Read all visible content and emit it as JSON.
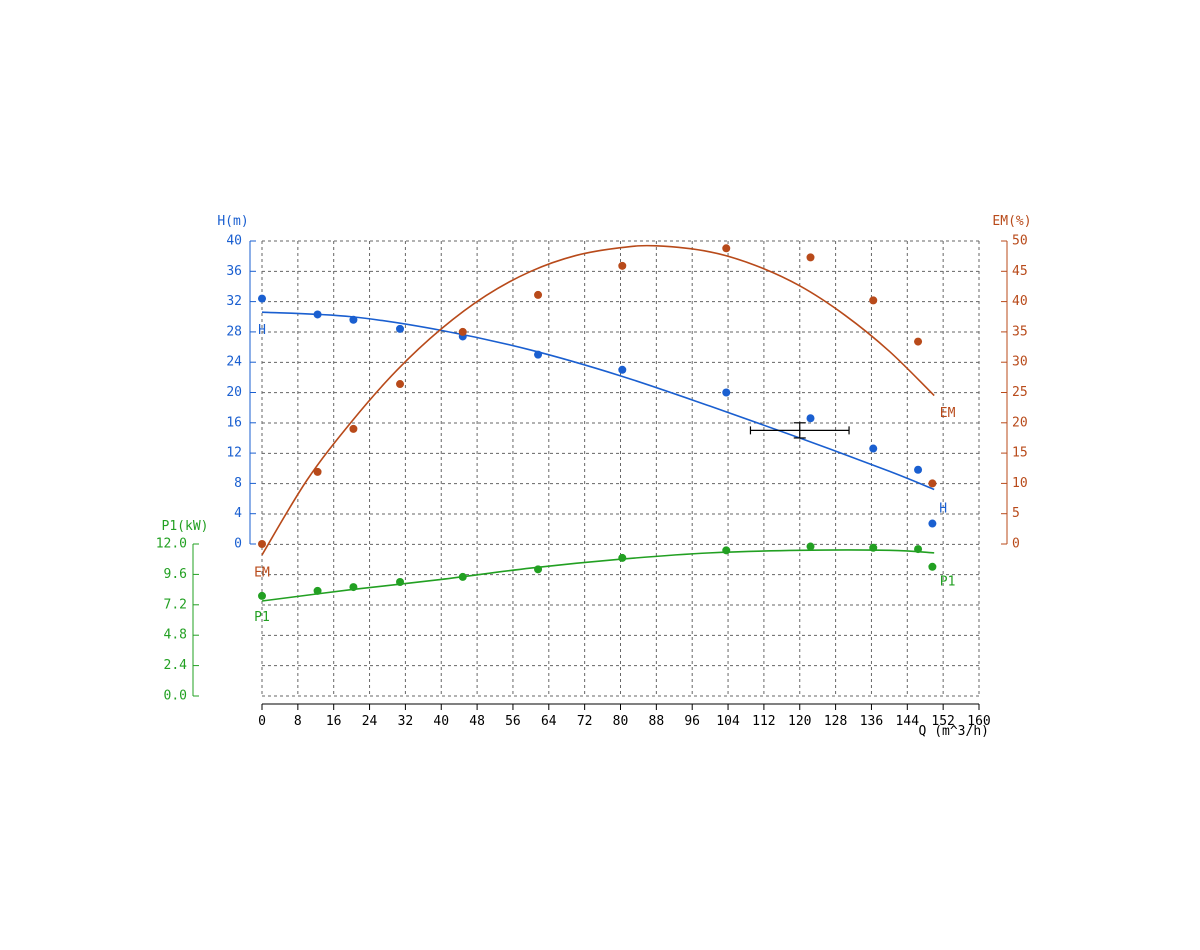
{
  "chart_data": {
    "type": "line",
    "xlabel": "Q (m^3/h)",
    "xlim": [
      0,
      160
    ],
    "xticks": [
      0,
      8,
      16,
      24,
      32,
      40,
      48,
      56,
      64,
      72,
      80,
      88,
      96,
      104,
      112,
      120,
      128,
      136,
      144,
      152,
      160
    ],
    "grid": true,
    "colors": {
      "H": "#1a5fd0",
      "EM": "#b84a1a",
      "P1": "#22a022",
      "marker": "#000000"
    },
    "axes": {
      "H": {
        "label": "H(m)",
        "lim": [
          0,
          40
        ],
        "ticks": [
          "0",
          "4",
          "8",
          "12",
          "16",
          "20",
          "24",
          "28",
          "32",
          "36",
          "40"
        ],
        "side": "left"
      },
      "EM": {
        "label": "EM(%)",
        "lim": [
          0,
          50
        ],
        "ticks": [
          "0",
          "5",
          "10",
          "15",
          "20",
          "25",
          "30",
          "35",
          "40",
          "45",
          "50"
        ],
        "side": "right"
      },
      "P1": {
        "label": "P1(kW)",
        "lim": [
          0,
          12
        ],
        "ticks": [
          "0.0",
          "2.4",
          "4.8",
          "7.2",
          "9.6",
          "12.0"
        ],
        "side": "left-lower"
      }
    },
    "series": [
      {
        "name": "H",
        "axis": "H",
        "points": [
          [
            0,
            32.4
          ],
          [
            12.4,
            30.3
          ],
          [
            20.4,
            29.6
          ],
          [
            30.8,
            28.4
          ],
          [
            44.8,
            27.4
          ],
          [
            61.6,
            25.0
          ],
          [
            80.4,
            23.0
          ],
          [
            103.6,
            20.0
          ],
          [
            122.4,
            16.6
          ],
          [
            136.4,
            12.6
          ],
          [
            146.4,
            9.8
          ],
          [
            149.6,
            2.7
          ]
        ],
        "fit": [
          [
            0,
            30.6
          ],
          [
            20,
            30.0
          ],
          [
            40,
            28.2
          ],
          [
            60,
            25.6
          ],
          [
            80,
            22.2
          ],
          [
            100,
            18.2
          ],
          [
            120,
            14.0
          ],
          [
            140,
            9.6
          ],
          [
            150,
            7.2
          ]
        ],
        "labels": [
          {
            "text": "H",
            "x": 0,
            "y": 28.2
          },
          {
            "text": "H",
            "x": 152,
            "y": 4.6
          }
        ]
      },
      {
        "name": "EM",
        "axis": "EM",
        "points": [
          [
            0,
            0.0
          ],
          [
            12.4,
            11.9
          ],
          [
            20.4,
            19.0
          ],
          [
            30.8,
            26.4
          ],
          [
            44.8,
            35.0
          ],
          [
            61.6,
            41.1
          ],
          [
            80.4,
            45.9
          ],
          [
            103.6,
            48.8
          ],
          [
            122.4,
            47.3
          ],
          [
            136.4,
            40.2
          ],
          [
            146.4,
            33.4
          ],
          [
            149.6,
            10.0
          ]
        ],
        "fit": [
          [
            0,
            -1.8
          ],
          [
            10,
            10.5
          ],
          [
            20,
            20.2
          ],
          [
            30,
            28.6
          ],
          [
            40,
            35.5
          ],
          [
            50,
            41.0
          ],
          [
            60,
            45.0
          ],
          [
            70,
            47.6
          ],
          [
            80,
            48.9
          ],
          [
            88,
            49.2
          ],
          [
            100,
            48.2
          ],
          [
            110,
            46.0
          ],
          [
            120,
            42.6
          ],
          [
            130,
            37.8
          ],
          [
            140,
            31.8
          ],
          [
            150,
            24.5
          ]
        ],
        "labels": [
          {
            "text": "EM",
            "x": 153,
            "y": 21.5
          },
          {
            "text": "EM",
            "x": 0,
            "y": -4.8
          }
        ]
      },
      {
        "name": "P1",
        "axis": "P1",
        "points": [
          [
            0,
            7.9
          ],
          [
            12.4,
            8.3
          ],
          [
            20.4,
            8.6
          ],
          [
            30.8,
            9.0
          ],
          [
            44.8,
            9.4
          ],
          [
            61.6,
            10.0
          ],
          [
            80.4,
            10.9
          ],
          [
            103.6,
            11.5
          ],
          [
            122.4,
            11.8
          ],
          [
            136.4,
            11.7
          ],
          [
            146.4,
            11.6
          ],
          [
            149.6,
            10.2
          ]
        ],
        "fit": [
          [
            0,
            7.5
          ],
          [
            20,
            8.4
          ],
          [
            40,
            9.2
          ],
          [
            60,
            10.1
          ],
          [
            80,
            10.8
          ],
          [
            100,
            11.3
          ],
          [
            120,
            11.5
          ],
          [
            140,
            11.5
          ],
          [
            150,
            11.3
          ]
        ],
        "labels": [
          {
            "text": "P1",
            "x": 0,
            "y": 6.2
          },
          {
            "text": "P1",
            "x": 153,
            "y": 9.0
          }
        ]
      }
    ],
    "duty_point": {
      "x": 120,
      "y": 15,
      "x_range": [
        109,
        131
      ],
      "y_range": [
        14,
        16
      ]
    }
  }
}
